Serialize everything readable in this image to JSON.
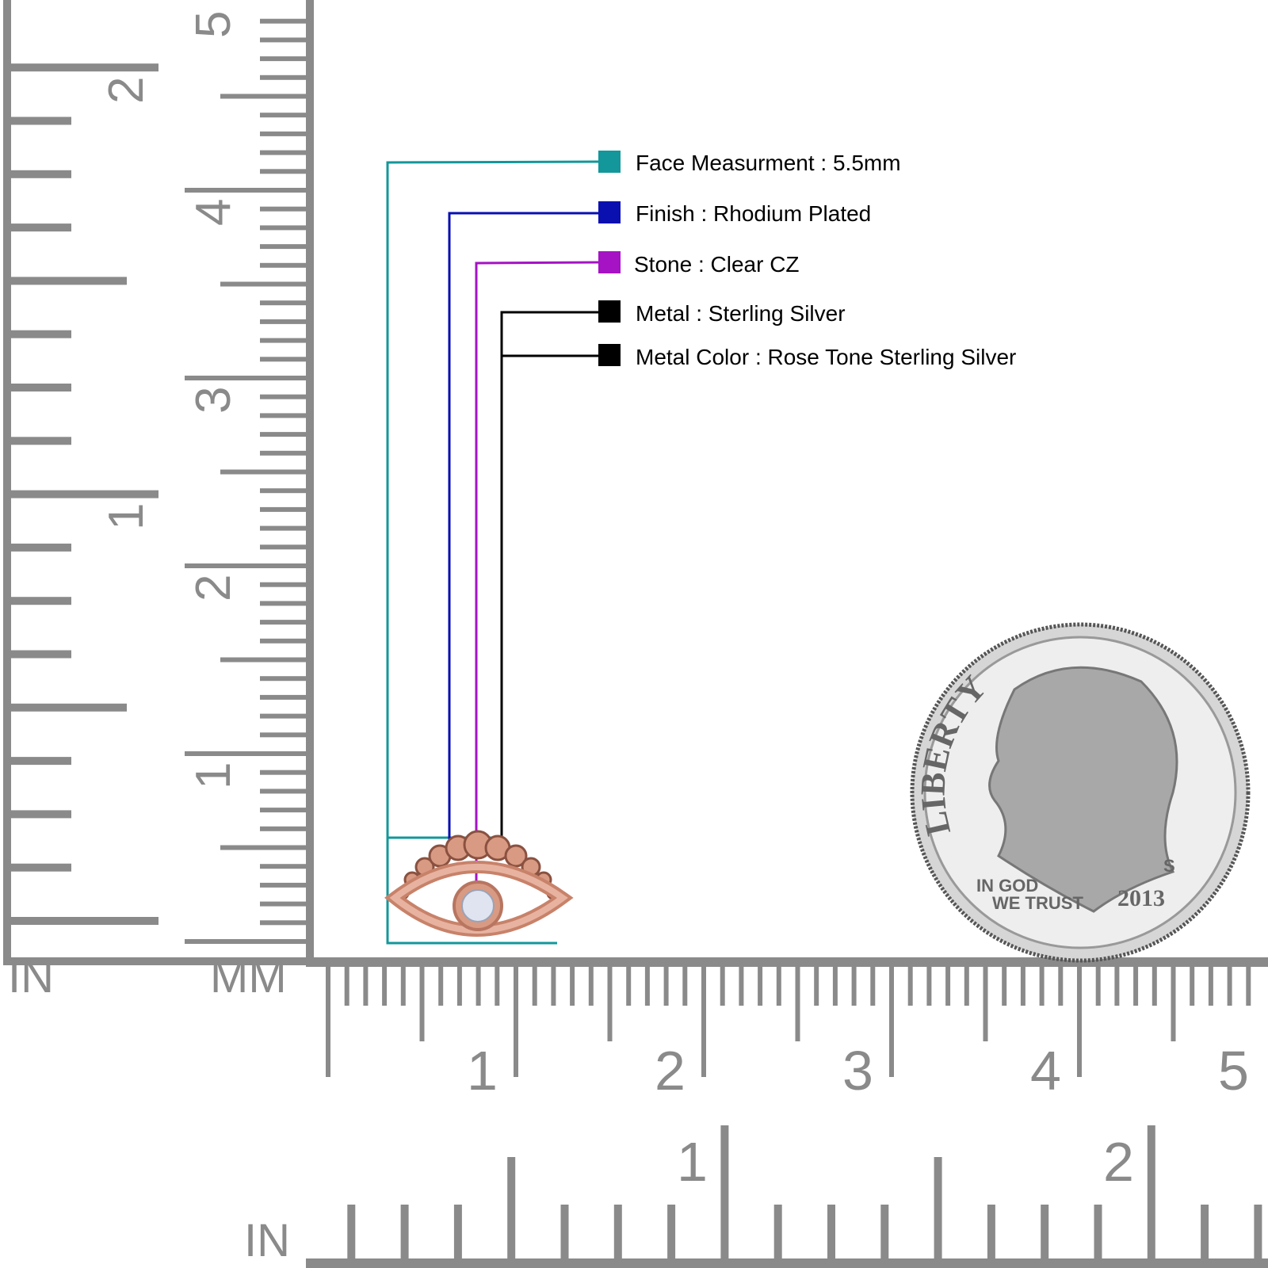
{
  "specs": [
    {
      "label": "Face Measurment : 5.5mm",
      "color": "#13979a"
    },
    {
      "label": "Finish : Rhodium Plated",
      "color": "#0a0fb0"
    },
    {
      "label": "Stone : Clear CZ",
      "color": "#a513c4"
    },
    {
      "label": "Metal : Sterling Silver",
      "color": "#000000"
    },
    {
      "label": "Metal Color : Rose Tone Sterling Silver",
      "color": "#000000"
    }
  ],
  "rulers": {
    "color": "#8a8a8a",
    "left_inch_labels": [
      "1",
      "2"
    ],
    "left_mm_labels": [
      "1",
      "2",
      "3",
      "4",
      "5"
    ],
    "bottom_mm_labels": [
      "1",
      "2",
      "3",
      "4",
      "5"
    ],
    "bottom_inch_labels": [
      "1",
      "2"
    ],
    "unit_in_left": "IN",
    "unit_mm": "MM",
    "unit_in_bottom": "IN"
  },
  "product": {
    "metal_color": "#d89a82",
    "stone_color": "#dfe4f0"
  },
  "coin": {
    "legend": "LIBERTY",
    "motto_1": "IN GOD",
    "motto_2": "WE TRUST",
    "year": "2013",
    "mint_mark": "S"
  }
}
